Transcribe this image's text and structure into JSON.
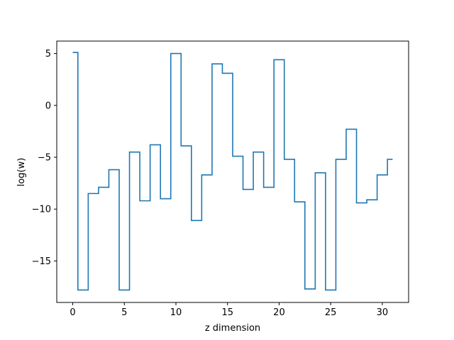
{
  "chart_data": {
    "type": "line",
    "drawstyle": "steps-mid",
    "xlabel": "z dimension",
    "ylabel": "log(w)",
    "xlim": [
      -1.55,
      32.55
    ],
    "ylim": [
      -19.0,
      6.2
    ],
    "xticks": [
      0,
      5,
      10,
      15,
      20,
      25,
      30
    ],
    "yticks": [
      5,
      0,
      -5,
      -10,
      -15
    ],
    "ytick_labels": [
      "5",
      "0",
      "−5",
      "−10",
      "−15"
    ],
    "grid": false,
    "line_color": "#1f77b4",
    "series": [
      {
        "x": [
          0,
          1,
          2,
          3,
          4,
          5,
          6,
          7,
          8,
          9,
          10,
          11,
          12,
          13,
          14,
          15,
          16,
          17,
          18,
          19,
          20,
          21,
          22,
          23,
          24,
          25,
          26,
          27,
          28,
          29,
          30,
          31
        ],
        "y": [
          5.1,
          -17.8,
          -8.5,
          -7.9,
          -6.2,
          -17.8,
          -4.5,
          -9.2,
          -3.8,
          -9.0,
          5.0,
          -3.9,
          -11.1,
          -6.7,
          4.0,
          3.1,
          -4.9,
          -8.1,
          -4.5,
          -7.9,
          4.4,
          -5.2,
          -9.3,
          -17.7,
          -6.5,
          -17.8,
          -5.2,
          -2.3,
          -9.4,
          -9.1,
          -6.7,
          -5.2
        ]
      }
    ]
  }
}
